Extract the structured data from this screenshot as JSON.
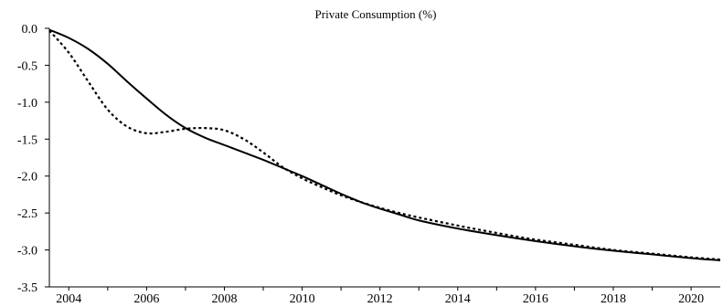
{
  "chart_data": {
    "type": "line",
    "title": "Private Consumption (%)",
    "xlabel": "",
    "ylabel": "",
    "xlim": [
      2003.5,
      2020.75
    ],
    "ylim": [
      -3.5,
      0.0
    ],
    "x_ticks": [
      "2004",
      "2006",
      "2008",
      "2010",
      "2012",
      "2014",
      "2016",
      "2018",
      "2020"
    ],
    "y_ticks": [
      "0.0",
      "-0.5",
      "-1.0",
      "-1.5",
      "-2.0",
      "-2.5",
      "-3.0",
      "-3.5"
    ],
    "grid": false,
    "legend": "none",
    "series": [
      {
        "style": "solid",
        "color": "#000000",
        "x": [
          2003.5,
          2004.0,
          2004.5,
          2005.0,
          2005.5,
          2006.0,
          2006.5,
          2007.0,
          2007.5,
          2008.0,
          2008.5,
          2009.0,
          2009.5,
          2010.0,
          2010.5,
          2011.0,
          2011.5,
          2012.0,
          2012.5,
          2013.0,
          2014.0,
          2015.0,
          2016.0,
          2017.0,
          2018.0,
          2019.0,
          2020.0,
          2020.75
        ],
        "y": [
          -0.02,
          -0.13,
          -0.28,
          -0.48,
          -0.72,
          -0.95,
          -1.17,
          -1.35,
          -1.48,
          -1.58,
          -1.68,
          -1.78,
          -1.89,
          -2.0,
          -2.12,
          -2.24,
          -2.35,
          -2.44,
          -2.52,
          -2.6,
          -2.71,
          -2.8,
          -2.88,
          -2.95,
          -3.01,
          -3.06,
          -3.11,
          -3.14
        ]
      },
      {
        "style": "dotted",
        "color": "#000000",
        "x": [
          2003.5,
          2004.0,
          2004.5,
          2005.0,
          2005.5,
          2006.0,
          2006.5,
          2007.0,
          2007.5,
          2008.0,
          2008.5,
          2009.0,
          2009.5,
          2010.0,
          2010.5,
          2011.0,
          2011.5,
          2012.0,
          2012.5,
          2013.0,
          2014.0,
          2015.0,
          2016.0,
          2017.0,
          2018.0,
          2019.0,
          2020.0,
          2020.75
        ],
        "y": [
          -0.03,
          -0.33,
          -0.72,
          -1.1,
          -1.33,
          -1.42,
          -1.4,
          -1.36,
          -1.35,
          -1.38,
          -1.5,
          -1.68,
          -1.88,
          -2.03,
          -2.15,
          -2.26,
          -2.35,
          -2.43,
          -2.5,
          -2.56,
          -2.67,
          -2.77,
          -2.86,
          -2.93,
          -3.0,
          -3.05,
          -3.1,
          -3.13
        ]
      }
    ]
  }
}
